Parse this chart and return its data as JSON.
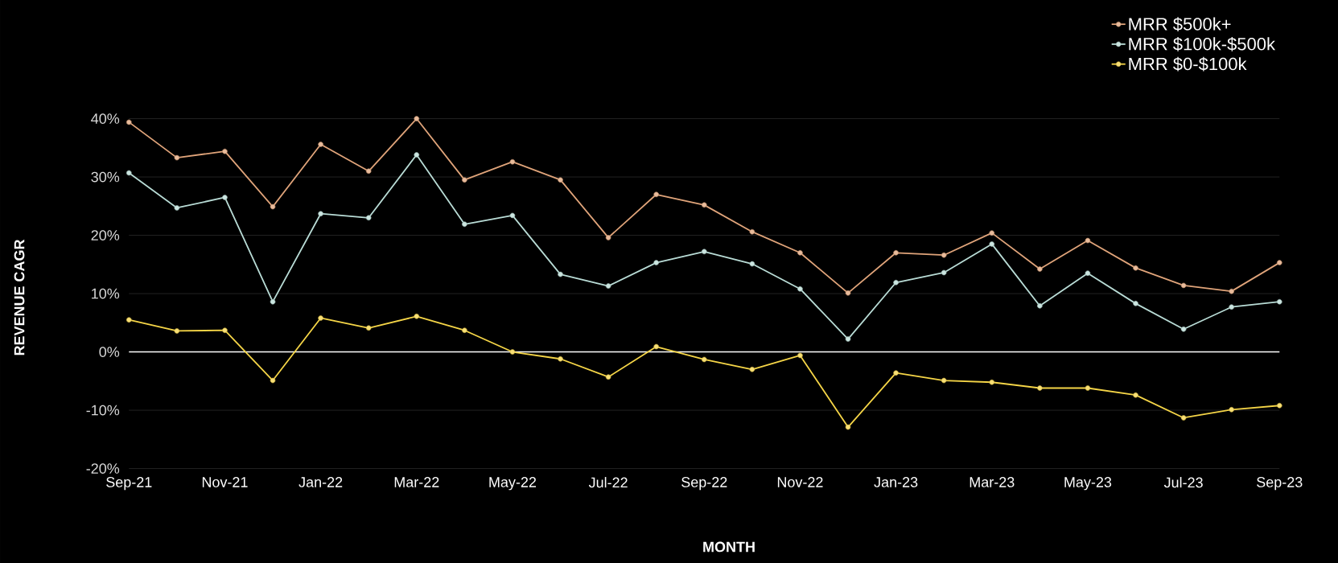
{
  "chart_data": {
    "type": "line",
    "xlabel": "MONTH",
    "ylabel": "REVENUE CAGR",
    "categories": [
      "Sep-21",
      null,
      "Nov-21",
      null,
      "Jan-22",
      null,
      "Mar-22",
      null,
      "May-22",
      null,
      "Jul-22",
      null,
      "Sep-22",
      null,
      "Nov-22",
      null,
      "Jan-23",
      null,
      "Mar-23",
      null,
      "May-23",
      null,
      "Jul-23",
      null,
      "Sep-23"
    ],
    "series": [
      {
        "name": "MRR $500k+",
        "color": "#e0a47a",
        "values": [
          39.4,
          33.3,
          34.4,
          24.9,
          35.6,
          31.0,
          40.0,
          29.5,
          32.6,
          29.5,
          19.6,
          27.0,
          25.2,
          20.6,
          17.0,
          10.1,
          17.0,
          16.6,
          20.4,
          14.2,
          19.1,
          14.4,
          11.4,
          10.4,
          15.3
        ]
      },
      {
        "name": "MRR $100k-$500k",
        "color": "#b9dcd6",
        "values": [
          30.7,
          24.7,
          26.5,
          8.6,
          23.7,
          23.0,
          33.8,
          21.9,
          23.4,
          13.3,
          11.3,
          15.3,
          17.2,
          15.1,
          10.8,
          2.2,
          11.9,
          13.6,
          18.5,
          7.9,
          13.5,
          8.3,
          3.9,
          7.7,
          8.6
        ]
      },
      {
        "name": "MRR $0-$100k",
        "color": "#f5d547",
        "values": [
          5.5,
          3.6,
          3.7,
          -4.9,
          5.8,
          4.1,
          6.1,
          3.7,
          0.0,
          -1.2,
          -4.3,
          0.9,
          -1.3,
          -3.0,
          -0.6,
          -12.9,
          -3.6,
          -4.9,
          -5.2,
          -6.2,
          -6.2,
          -7.4,
          -11.3,
          -9.9,
          -9.2
        ]
      }
    ],
    "ylim": [
      -20,
      40
    ],
    "yticks": [
      {
        "value": -20,
        "label": "-20%"
      },
      {
        "value": -10,
        "label": "-10%"
      },
      {
        "value": 0,
        "label": "0%"
      },
      {
        "value": 10,
        "label": "10%"
      },
      {
        "value": 20,
        "label": "20%"
      },
      {
        "value": 30,
        "label": "30%"
      },
      {
        "value": 40,
        "label": "40%"
      }
    ],
    "grid": "y",
    "legend": "top right",
    "marker": "circle",
    "ref_lines": [
      {
        "axis": "y",
        "value": 0,
        "color": "#ffffff"
      }
    ]
  }
}
